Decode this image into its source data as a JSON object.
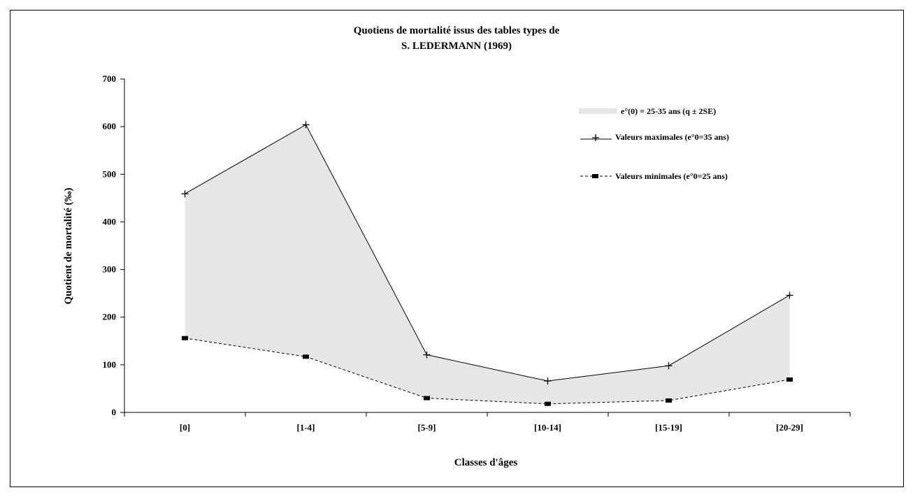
{
  "chart_data": {
    "type": "area",
    "title": [
      "Quotiens de mortalité issus des tables types de",
      "S. LEDERMANN (1969)"
    ],
    "xlabel": "Classes d'âges",
    "ylabel": "Quotient de mortalité (‰)",
    "categories": [
      "[0]",
      "[1-4]",
      "[5-9]",
      "[10-14]",
      "[15-19]",
      "[20-29]"
    ],
    "ylim": [
      0,
      700
    ],
    "yticks": [
      0,
      100,
      200,
      300,
      400,
      500,
      600,
      700
    ],
    "grid": false,
    "legend_position": "top-right",
    "band": {
      "name": "e°(0) = 25-35 ans (q ± 2SE)",
      "color": "#e6e6e6"
    },
    "series": [
      {
        "name": "Valeurs maximales (e°0=35 ans)",
        "marker": "plus",
        "line_style": "solid",
        "values": [
          459,
          604,
          121,
          66,
          98,
          246
        ]
      },
      {
        "name": "Valeurs minimales (e°0=25 ans)",
        "marker": "square",
        "line_style": "dashed",
        "values": [
          156,
          117,
          30,
          18,
          25,
          69
        ]
      }
    ]
  }
}
